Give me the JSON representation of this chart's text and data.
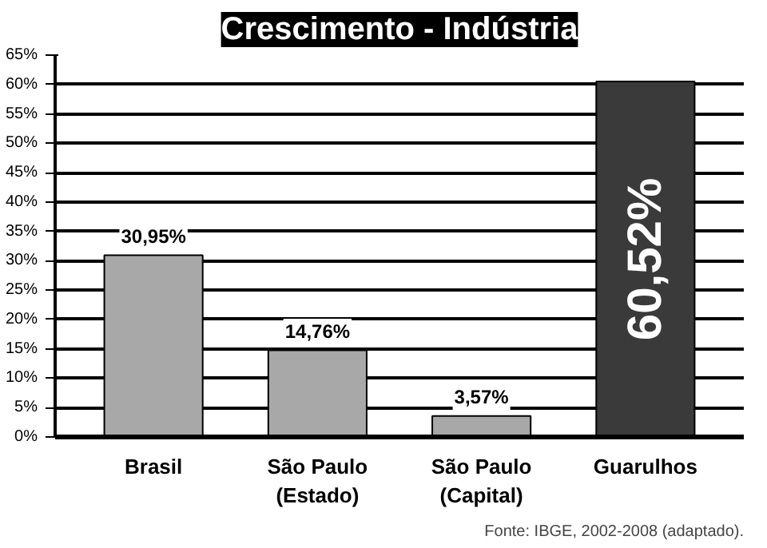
{
  "chart_data": {
    "type": "bar",
    "title": "Crescimento - Indústria",
    "categories": [
      "Brasil",
      "São Paulo\n(Estado)",
      "São Paulo\n(Capital)",
      "Guarulhos"
    ],
    "values": [
      30.95,
      14.76,
      3.57,
      60.52
    ],
    "colors": [
      "#a8a8a8",
      "#a8a8a8",
      "#a8a8a8",
      "#3a3a3a"
    ],
    "value_labels": [
      "30,95%",
      "14,76%",
      "3,57%",
      "60,52%"
    ],
    "ylim": [
      0,
      65
    ],
    "yticks": [
      {
        "value": 0,
        "label": "0%"
      },
      {
        "value": 5,
        "label": "5%"
      },
      {
        "value": 10,
        "label": "10%"
      },
      {
        "value": 15,
        "label": "15%"
      },
      {
        "value": 20,
        "label": "20%"
      },
      {
        "value": 25,
        "label": "25%"
      },
      {
        "value": 30,
        "label": "30%"
      },
      {
        "value": 35,
        "label": "35%"
      },
      {
        "value": 40,
        "label": "40%"
      },
      {
        "value": 45,
        "label": "45%"
      },
      {
        "value": 50,
        "label": "50%"
      },
      {
        "value": 55,
        "label": "55%"
      },
      {
        "value": 60,
        "label": "60%"
      },
      {
        "value": 65,
        "label": "65%"
      }
    ],
    "grid": "y",
    "annotations": [
      "Fonte: IBGE, 2002-2008 (adaptado)."
    ]
  }
}
